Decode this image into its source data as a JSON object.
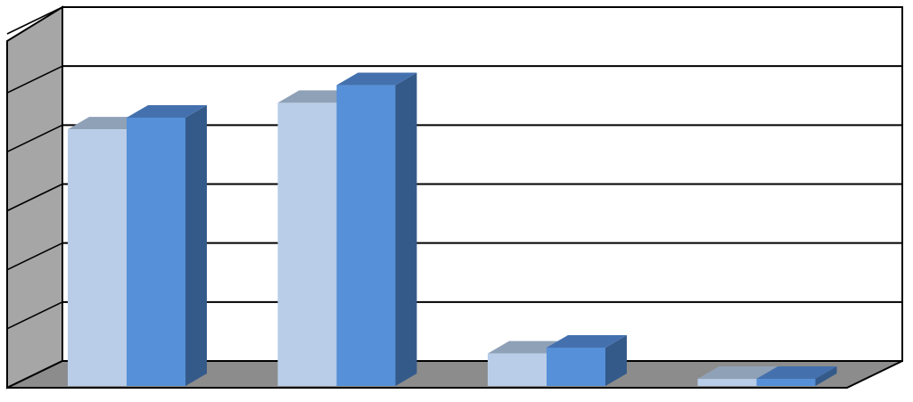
{
  "chart_data": {
    "type": "bar",
    "three_d": true,
    "categories": [
      "",
      "",
      "",
      ""
    ],
    "series": [
      {
        "values": [
          4.35,
          4.8,
          0.55,
          0.12
        ]
      },
      {
        "values": [
          4.55,
          5.1,
          0.65,
          0.12
        ]
      }
    ],
    "ylim": [
      0,
      6
    ],
    "grid": true,
    "legend": "none",
    "colors": {
      "series1_front": "#b9cde8",
      "series1_side": "#6f86a8",
      "series1_top": "#8fa1b7",
      "series2_front": "#5690d8",
      "series2_side": "#345a8a",
      "series2_top": "#4471ae",
      "back_wall": "#ffffff",
      "side_wall": "#a6a6a6",
      "floor": "#8c8c8c",
      "gridline": "#000000"
    }
  }
}
